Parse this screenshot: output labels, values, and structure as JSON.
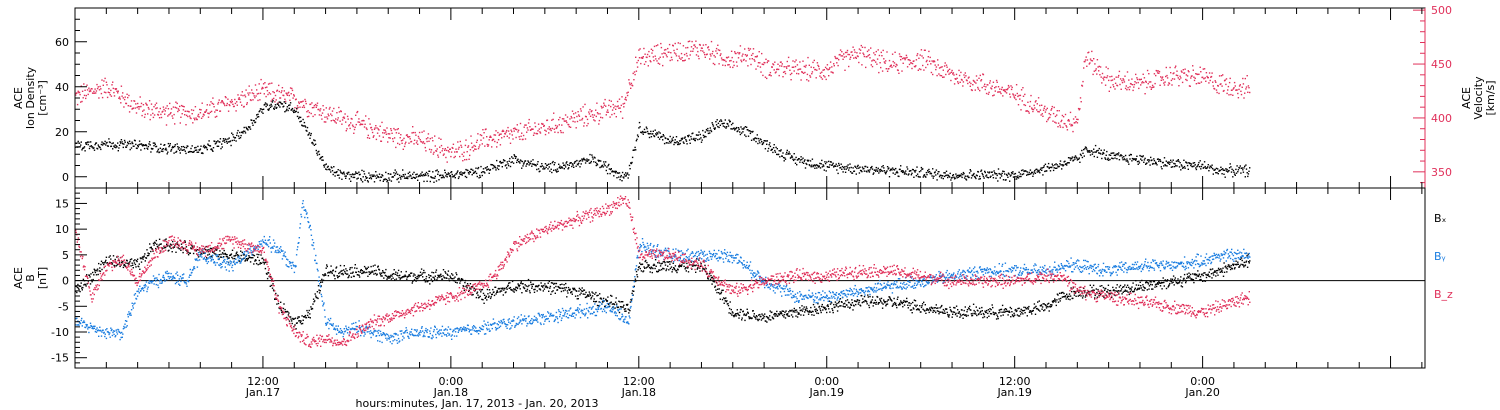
{
  "colors": {
    "black": "#000000",
    "red": "#e0305a",
    "blue": "#1a7de0"
  },
  "xlabel": "hours:minutes, Jan. 17, 2013 - Jan. 20, 2013",
  "x_ticks": [
    {
      "t": 12,
      "line1": "12:00",
      "line2": "Jan.17"
    },
    {
      "t": 24,
      "line1": "0:00",
      "line2": "Jan.18"
    },
    {
      "t": 36,
      "line1": "12:00",
      "line2": "Jan.18"
    },
    {
      "t": 48,
      "line1": "0:00",
      "line2": "Jan.19"
    },
    {
      "t": 60,
      "line1": "12:00",
      "line2": "Jan.19"
    },
    {
      "t": 72,
      "line1": "0:00",
      "line2": "Jan.20"
    }
  ],
  "chart_data": [
    {
      "type": "scatter",
      "panel": "top",
      "xlim": [
        0,
        86.2
      ],
      "left_axis": {
        "label_lines": [
          "ACE",
          "Ion Density",
          "[cm⁻³]"
        ],
        "ylim": [
          -5,
          75
        ],
        "ticks": [
          0,
          20,
          40,
          60
        ]
      },
      "right_axis": {
        "label_lines": [
          "ACE",
          "Velocity",
          "[km/s]"
        ],
        "ylim": [
          335,
          502
        ],
        "ticks": [
          350,
          400,
          450,
          500
        ]
      },
      "series": [
        {
          "axis": "left",
          "color": "black",
          "x": [
            0,
            2,
            4,
            6,
            8,
            10,
            11,
            12,
            13,
            14,
            15,
            16,
            17,
            18,
            19,
            20,
            22,
            24,
            26,
            28,
            30,
            32,
            33,
            34,
            35,
            35.3,
            36,
            38,
            40,
            41,
            42,
            43,
            44,
            45,
            46,
            48,
            50,
            52,
            54,
            56,
            58,
            60,
            62,
            63,
            64,
            64.5,
            65,
            66,
            68,
            70,
            72,
            73,
            74,
            75
          ],
          "y": [
            14,
            15,
            14,
            13,
            12,
            17,
            22,
            31,
            33,
            30,
            18,
            4,
            1,
            0.5,
            0.5,
            0.5,
            0.5,
            1,
            3,
            8,
            4,
            6,
            8,
            4,
            1,
            2,
            22,
            16,
            18,
            24,
            22,
            20,
            15,
            11,
            8,
            5,
            4,
            3,
            2,
            1,
            1,
            1,
            4,
            6,
            8,
            12,
            12,
            9,
            8,
            6,
            5,
            3,
            3,
            3
          ]
        },
        {
          "axis": "right",
          "color": "red",
          "x": [
            0,
            2,
            4,
            6,
            8,
            10,
            12,
            14,
            16,
            17,
            18,
            20,
            22,
            24,
            25,
            26,
            28,
            30,
            32,
            34,
            35,
            35.3,
            36,
            38,
            40,
            41,
            42,
            43,
            44,
            46,
            48,
            49,
            50,
            52,
            54,
            56,
            58,
            60,
            61,
            62,
            62.5,
            63,
            63.5,
            64,
            64.5,
            66,
            68,
            70,
            72,
            73,
            74,
            75
          ],
          "y": [
            420,
            430,
            410,
            405,
            405,
            415,
            425,
            418,
            405,
            400,
            395,
            385,
            380,
            368,
            372,
            380,
            385,
            392,
            400,
            408,
            412,
            430,
            455,
            462,
            465,
            458,
            455,
            460,
            448,
            445,
            445,
            455,
            460,
            450,
            455,
            440,
            432,
            422,
            415,
            405,
            402,
            400,
            398,
            400,
            458,
            435,
            432,
            440,
            438,
            432,
            430,
            428
          ]
        }
      ]
    },
    {
      "type": "scatter",
      "panel": "bottom",
      "xlim": [
        0,
        86.2
      ],
      "left_axis": {
        "label_lines": [
          "ACE",
          "B",
          "[nT]"
        ],
        "ylim": [
          -17,
          18
        ],
        "ticks": [
          -15,
          -10,
          -5,
          0,
          5,
          10,
          15
        ]
      },
      "reference_line_y": 0,
      "legend": [
        "Bₓ",
        "Bᵧ",
        "B_z"
      ],
      "series": [
        {
          "name": "Bₓ",
          "color": "black",
          "x": [
            0,
            2,
            4,
            5,
            6,
            8,
            10,
            12,
            13,
            14,
            15,
            16,
            17,
            18,
            19,
            20,
            22,
            24,
            26,
            28,
            30,
            32,
            33,
            34,
            35,
            35.3,
            36,
            38,
            40,
            42,
            44,
            46,
            48,
            50,
            52,
            54,
            56,
            58,
            60,
            62,
            63,
            64,
            66,
            68,
            70,
            72,
            73,
            74,
            75
          ],
          "y": [
            -2,
            4,
            3,
            7,
            7,
            6,
            5,
            4,
            -5,
            -8,
            -6,
            2,
            2,
            2,
            2,
            1,
            1,
            1,
            -3,
            -1,
            -1,
            -2,
            -3,
            -4,
            -5,
            -6,
            3,
            3,
            3,
            -6,
            -7,
            -6,
            -5,
            -4,
            -4,
            -5,
            -6,
            -6,
            -6,
            -5,
            -3,
            -2,
            -2,
            -1,
            0,
            1,
            2,
            3,
            4
          ]
        },
        {
          "name": "Bᵧ",
          "color": "blue",
          "x": [
            0,
            2,
            3,
            4,
            5,
            6,
            7,
            8,
            10,
            12,
            13,
            14,
            14.5,
            15,
            16,
            17,
            18,
            20,
            22,
            24,
            26,
            28,
            30,
            32,
            34,
            35,
            35.3,
            36,
            38,
            40,
            42,
            44,
            46,
            48,
            50,
            52,
            54,
            56,
            58,
            60,
            62,
            63,
            64,
            66,
            68,
            70,
            72,
            73,
            74,
            75
          ],
          "y": [
            -8,
            -10,
            -10,
            -2,
            0,
            1,
            0,
            5,
            3,
            8,
            6,
            2,
            15,
            10,
            -8,
            -10,
            -9,
            -11,
            -10,
            -10,
            -9,
            -8,
            -7,
            -6,
            -5,
            -7,
            -8,
            7,
            5,
            5,
            5,
            0,
            -3,
            -3,
            -2,
            -1,
            0,
            1,
            2,
            2,
            2,
            3,
            3,
            2,
            3,
            3,
            4,
            5,
            5,
            5
          ]
        },
        {
          "name": "B_z",
          "color": "red",
          "x": [
            0,
            1,
            2,
            3,
            4,
            5,
            6,
            8,
            10,
            12,
            13,
            14,
            15,
            16,
            17,
            18,
            19,
            20,
            22,
            24,
            26,
            27,
            28,
            30,
            32,
            34,
            35,
            35.3,
            36,
            38,
            40,
            42,
            44,
            46,
            48,
            50,
            52,
            54,
            56,
            58,
            60,
            62,
            63,
            64,
            66,
            68,
            70,
            72,
            73,
            74,
            75
          ],
          "y": [
            10,
            -3,
            3,
            4,
            0,
            5,
            8,
            6,
            8,
            6,
            -5,
            -10,
            -12,
            -11,
            -12,
            -10,
            -8,
            -7,
            -5,
            -3,
            -1,
            2,
            7,
            10,
            12,
            14,
            16,
            15,
            5,
            5,
            3,
            -2,
            0,
            1,
            1,
            2,
            2,
            1,
            0,
            0,
            0,
            1,
            1,
            -2,
            -3,
            -4,
            -5,
            -6,
            -5,
            -4,
            -3
          ]
        }
      ]
    }
  ]
}
